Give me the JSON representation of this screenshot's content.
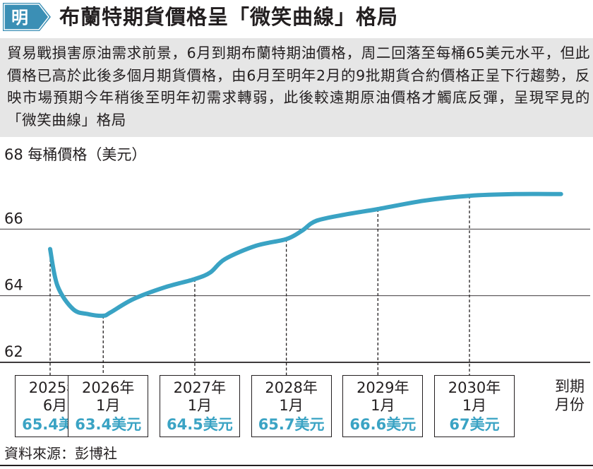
{
  "header": {
    "logo_text": "明",
    "title": "布蘭特期貨價格呈「微笑曲線」格局"
  },
  "intro": "貿易戰損害原油需求前景，6月到期布蘭特期油價格，周二回落至每桶65美元水平，但此價格已高於此後多個月期貨價格，由6月至明年2月的9批期貨合約價格正呈下行趨勢，反映市場預期今年稍後至明年初需求轉弱，此後較遠期原油價格才觸底反彈，呈現罕見的「微笑曲線」格局",
  "source": "資料來源：彭博社",
  "colors": {
    "line": "#3aa3c4",
    "price_text": "#3aa3c4",
    "intro_bg": "#e6e6e6",
    "logo": "#3b8fb5"
  },
  "chart_data": {
    "type": "line",
    "ylabel": "每桶價格（美元）",
    "xlabel": "到期月份",
    "ylim": [
      62,
      68
    ],
    "y_ticks": [
      "68",
      "66",
      "64",
      "62"
    ],
    "grid": true,
    "series": [
      {
        "values_x": [
          2025.42,
          2025.5,
          2025.67,
          2025.83,
          2026.0,
          2026.08,
          2026.33,
          2026.67,
          2027.0,
          2027.17,
          2027.33,
          2027.67,
          2028.0,
          2028.17,
          2028.33,
          2028.67,
          2029.0,
          2029.5,
          2030.0,
          2030.5,
          2031.0
        ],
        "values_y": [
          65.4,
          64.3,
          63.6,
          63.45,
          63.4,
          63.5,
          63.9,
          64.25,
          64.5,
          64.7,
          65.1,
          65.5,
          65.7,
          65.95,
          66.25,
          66.45,
          66.6,
          66.85,
          67.0,
          67.05,
          67.05
        ]
      }
    ],
    "annotations": [
      {
        "x": 2025.42,
        "date_line1": "2025年",
        "date_line2": "6月",
        "price_label": "65.4美元",
        "value": 65.4
      },
      {
        "x": 2026.0,
        "date_line1": "2026年",
        "date_line2": "1月",
        "price_label": "63.4美元",
        "value": 63.4
      },
      {
        "x": 2027.0,
        "date_line1": "2027年",
        "date_line2": "1月",
        "price_label": "64.5美元",
        "value": 64.5
      },
      {
        "x": 2028.0,
        "date_line1": "2028年",
        "date_line2": "1月",
        "price_label": "65.7美元",
        "value": 65.7
      },
      {
        "x": 2029.0,
        "date_line1": "2029年",
        "date_line2": "1月",
        "price_label": "66.6美元",
        "value": 66.6
      },
      {
        "x": 2030.0,
        "date_line1": "2030年",
        "date_line2": "1月",
        "price_label": "67美元",
        "value": 67.0
      }
    ]
  }
}
